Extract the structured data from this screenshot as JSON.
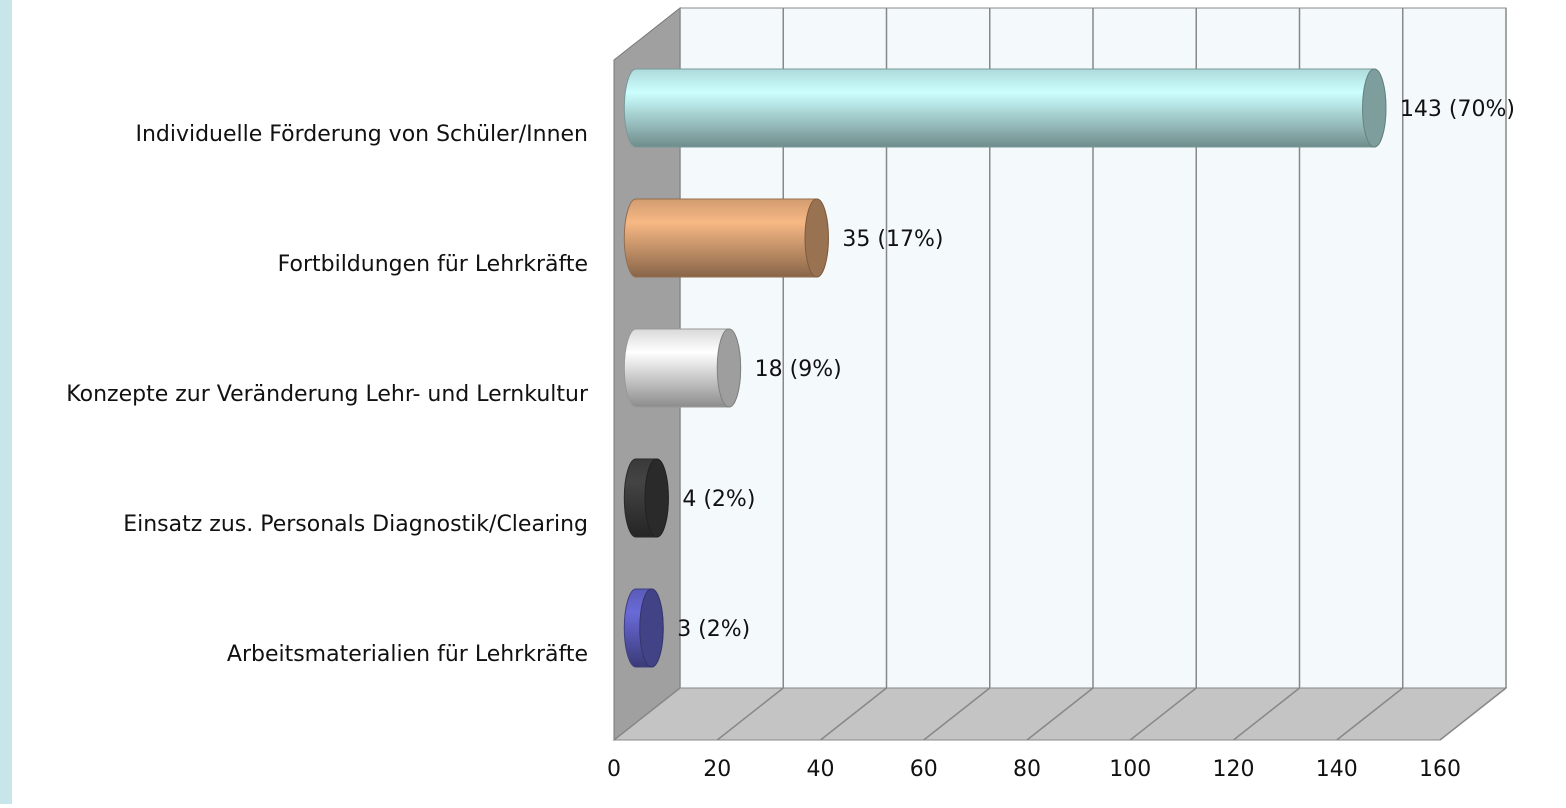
{
  "chart_data": {
    "type": "bar",
    "orientation": "horizontal",
    "categories": [
      "Individuelle Förderung von Schüler/Innen",
      "Fortbildungen für Lehrkräfte",
      "Konzepte zur Veränderung Lehr- und Lernkultur",
      "Einsatz zus. Personals Diagnostik/Clearing",
      "Arbeitsmaterialien für Lehrkräfte"
    ],
    "values": [
      143,
      35,
      18,
      4,
      3
    ],
    "value_labels": [
      "143 (70%)",
      "35 (17%)",
      "18 (9%)",
      "4 (2%)",
      "3 (2%)"
    ],
    "colors": [
      "#ccffff",
      "#f7b884",
      "#ffffff",
      "#444444",
      "#6a6ad8"
    ],
    "xlim": [
      0,
      160
    ],
    "xticks": [
      0,
      20,
      40,
      60,
      80,
      100,
      120,
      140,
      160
    ],
    "grid": true
  }
}
